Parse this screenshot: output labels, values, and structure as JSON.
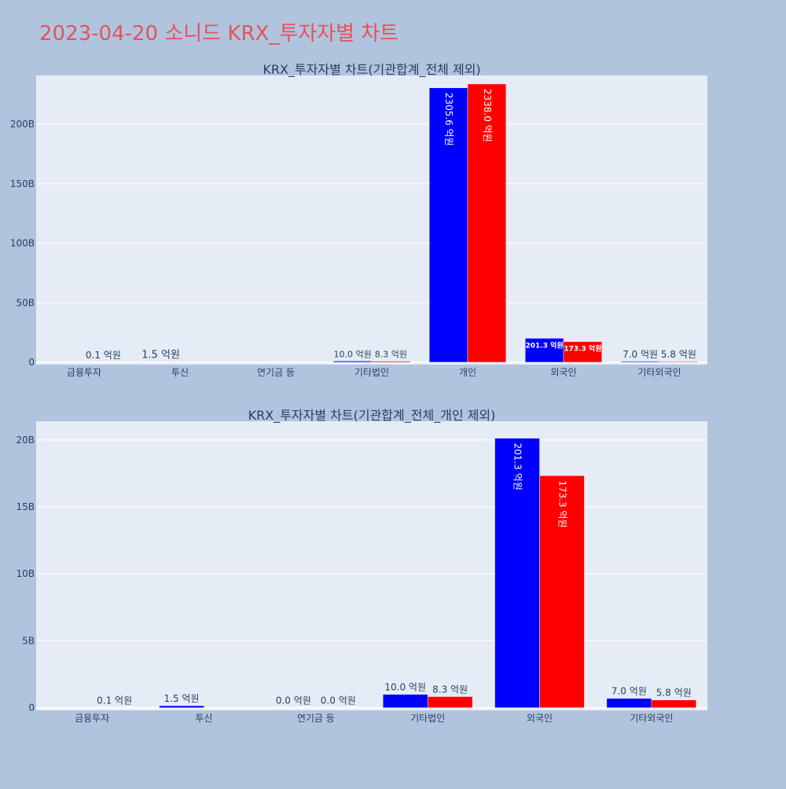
{
  "page": {
    "title": "2023-04-20 소니드 KRX_투자자별 차트",
    "title_color": "#e8515a",
    "background": "#b0c4de",
    "plot_background": "#e5ecf6"
  },
  "chart_data": [
    {
      "type": "bar",
      "title": "KRX_투자자별 차트(기관합계_전체 제외)",
      "xlabel": "",
      "ylabel": "",
      "categories": [
        "금융투자",
        "투신",
        "연기금 등",
        "기타법인",
        "개인",
        "외국인",
        "기타외국인"
      ],
      "series": [
        {
          "color": "#0000ff",
          "values": [
            0,
            0.15,
            0,
            1.0,
            230.56,
            20.13,
            0.7
          ],
          "labels": [
            "",
            "1.5 억원",
            "",
            "10.0 억원",
            "2305.6 억원",
            "201.3 억원",
            "7.0 억원"
          ]
        },
        {
          "color": "#ff0000",
          "values": [
            0.01,
            0,
            0,
            0.83,
            233.8,
            17.33,
            0.58
          ],
          "labels": [
            "0.1 억원",
            "",
            "",
            "8.3 억원",
            "2338.0 억원",
            "173.3 억원",
            "5.8 억원"
          ]
        }
      ],
      "ylim": [
        -2,
        241
      ],
      "yticks": [
        0,
        50,
        100,
        150,
        200
      ],
      "ytick_labels": [
        "0",
        "50B",
        "100B",
        "150B",
        "200B"
      ],
      "grid": true,
      "legend": "none"
    },
    {
      "type": "bar",
      "title": "KRX_투자자별 차트(기관합계_전체_개인 제외)",
      "xlabel": "",
      "ylabel": "",
      "categories": [
        "금융투자",
        "투신",
        "연기금 등",
        "기타법인",
        "외국인",
        "기타외국인"
      ],
      "series": [
        {
          "color": "#0000ff",
          "values": [
            0,
            0.15,
            0,
            1.0,
            20.13,
            0.7
          ],
          "labels": [
            "",
            "1.5 억원",
            "0.0 억원",
            "10.0 억원",
            "201.3 억원",
            "7.0 억원"
          ]
        },
        {
          "color": "#ff0000",
          "values": [
            0.01,
            0,
            0,
            0.83,
            17.33,
            0.58
          ],
          "labels": [
            "0.1 억원",
            "",
            "0.0 억원",
            "8.3 억원",
            "173.3 억원",
            "5.8 억원"
          ]
        }
      ],
      "ylim": [
        -0.2,
        21.4
      ],
      "yticks": [
        0,
        5,
        10,
        15,
        20
      ],
      "ytick_labels": [
        "0",
        "5B",
        "10B",
        "15B",
        "20B"
      ],
      "grid": true,
      "legend": "none"
    }
  ]
}
